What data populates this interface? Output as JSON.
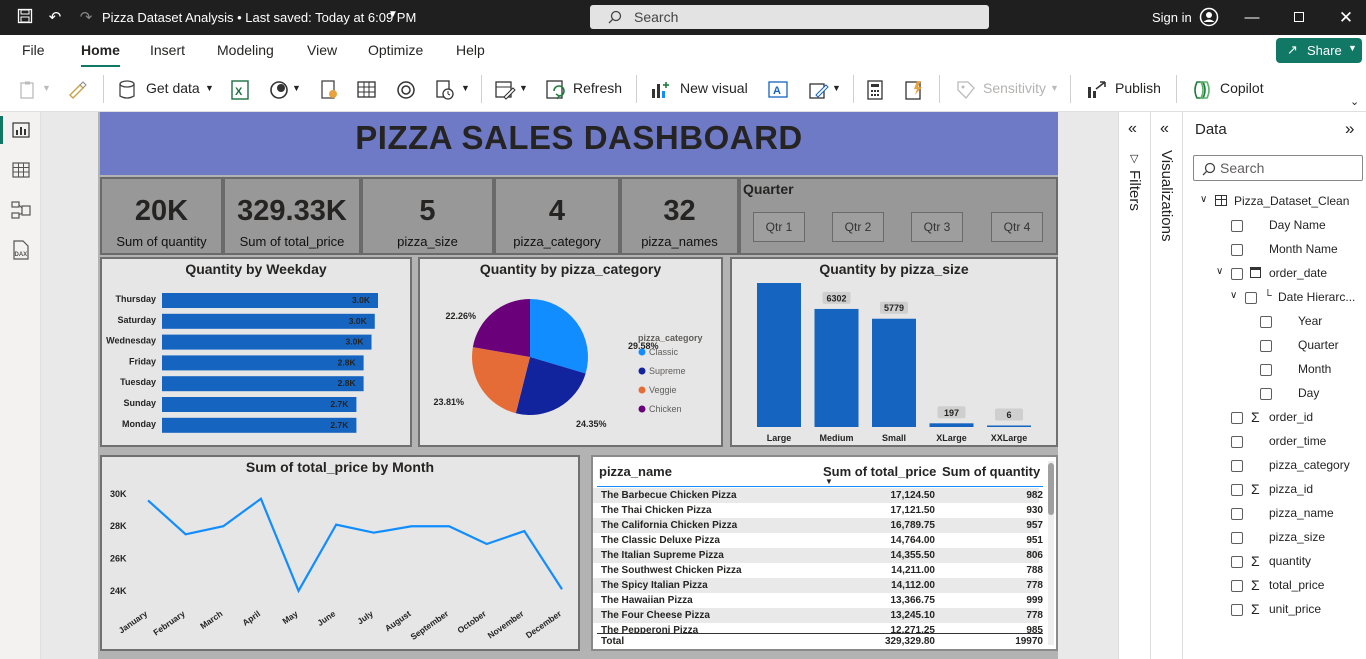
{
  "titlebar": {
    "doc_title": "Pizza Dataset Analysis • Last saved: Today at 6:09 PM",
    "search_label": "Search",
    "signin": "Sign in"
  },
  "menubar": {
    "items": [
      "File",
      "Home",
      "Insert",
      "Modeling",
      "View",
      "Optimize",
      "Help"
    ],
    "active": "Home",
    "share": "Share"
  },
  "ribbon": {
    "get_data": "Get data",
    "refresh": "Refresh",
    "new_visual": "New visual",
    "sensitivity": "Sensitivity",
    "publish": "Publish",
    "copilot": "Copilot"
  },
  "dashboard": {
    "title": "PIZZA SALES DASHBOARD",
    "kpis": [
      {
        "value": "20K",
        "label": "Sum of quantity"
      },
      {
        "value": "329.33K",
        "label": "Sum of total_price"
      },
      {
        "value": "5",
        "label": "pizza_size"
      },
      {
        "value": "4",
        "label": "pizza_category"
      },
      {
        "value": "32",
        "label": "pizza_names"
      }
    ],
    "slicer": {
      "title": "Quarter",
      "items": [
        "Qtr 1",
        "Qtr 2",
        "Qtr 3",
        "Qtr 4"
      ]
    }
  },
  "chart_data": [
    {
      "type": "bar",
      "orientation": "horizontal",
      "title": "Quantity by Weekday",
      "categories": [
        "Thursday",
        "Saturday",
        "Wednesday",
        "Friday",
        "Tuesday",
        "Sunday",
        "Monday"
      ],
      "values": [
        3.0,
        3.0,
        3.0,
        2.8,
        2.8,
        2.7,
        2.7
      ],
      "labels": [
        "3.0K",
        "3.0K",
        "3.0K",
        "2.8K",
        "2.8K",
        "2.7K",
        "2.7K"
      ],
      "color": "#1565c0"
    },
    {
      "type": "pie",
      "title": "Quantity by pizza_category",
      "legend_title": "pizza_category",
      "slices": [
        {
          "name": "Classic",
          "value": 29.58,
          "label": "29.58%",
          "color": "#118dff"
        },
        {
          "name": "Supreme",
          "value": 24.35,
          "label": "24.35%",
          "color": "#12239e"
        },
        {
          "name": "Veggie",
          "value": 23.81,
          "label": "23.81%",
          "color": "#e66c37"
        },
        {
          "name": "Chicken",
          "value": 22.26,
          "label": "22.26%",
          "color": "#6b007b"
        }
      ],
      "legend_placement": "right"
    },
    {
      "type": "bar",
      "title": "Quantity by pizza_size",
      "categories": [
        "Large",
        "Medium",
        "Small",
        "XLarge",
        "XXLarge"
      ],
      "values": [
        7686,
        6302,
        5779,
        197,
        6
      ],
      "color": "#1565c0"
    },
    {
      "type": "line",
      "title": "Sum of total_price by Month",
      "categories": [
        "January",
        "February",
        "March",
        "April",
        "May",
        "June",
        "July",
        "August",
        "September",
        "October",
        "November",
        "December"
      ],
      "values": [
        29600,
        27500,
        28000,
        29700,
        24000,
        28100,
        27600,
        28000,
        28000,
        26900,
        27700,
        24100
      ],
      "yticks": [
        "30K",
        "28K",
        "26K",
        "24K"
      ],
      "ylim": [
        23000,
        30800
      ],
      "color": "#118dff"
    },
    {
      "type": "table",
      "columns": [
        "pizza_name",
        "Sum of total_price",
        "Sum of quantity"
      ],
      "rows": [
        [
          "The Barbecue Chicken Pizza",
          "17,124.50",
          "982"
        ],
        [
          "The Thai Chicken Pizza",
          "17,121.50",
          "930"
        ],
        [
          "The California Chicken Pizza",
          "16,789.75",
          "957"
        ],
        [
          "The Classic Deluxe Pizza",
          "14,764.00",
          "951"
        ],
        [
          "The Italian Supreme Pizza",
          "14,355.50",
          "806"
        ],
        [
          "The Southwest Chicken Pizza",
          "14,211.00",
          "788"
        ],
        [
          "The Spicy Italian Pizza",
          "14,112.00",
          "778"
        ],
        [
          "The Hawaiian Pizza",
          "13,366.75",
          "999"
        ],
        [
          "The Four Cheese Pizza",
          "13,245.10",
          "778"
        ],
        [
          "The Pepperoni Pizza",
          "12,271.25",
          "985"
        ]
      ],
      "total": [
        "Total",
        "329,329.80",
        "19970"
      ]
    }
  ],
  "panes": {
    "filters": "Filters",
    "visualizations": "Visualizations",
    "data": "Data",
    "data_search": "Search",
    "fields": [
      {
        "label": "Pizza_Dataset_Clean",
        "type": "table",
        "indent": 0
      },
      {
        "label": "Day Name",
        "type": "field",
        "indent": 1
      },
      {
        "label": "Month Name",
        "type": "field",
        "indent": 1
      },
      {
        "label": "order_date",
        "type": "date",
        "indent": 1
      },
      {
        "label": "Date Hierarc...",
        "type": "hier",
        "indent": 2
      },
      {
        "label": "Year",
        "type": "field",
        "indent": 3
      },
      {
        "label": "Quarter",
        "type": "field",
        "indent": 3
      },
      {
        "label": "Month",
        "type": "field",
        "indent": 3
      },
      {
        "label": "Day",
        "type": "field",
        "indent": 3
      },
      {
        "label": "order_id",
        "type": "sum",
        "indent": 1
      },
      {
        "label": "order_time",
        "type": "field",
        "indent": 1
      },
      {
        "label": "pizza_category",
        "type": "field",
        "indent": 1
      },
      {
        "label": "pizza_id",
        "type": "sum",
        "indent": 1
      },
      {
        "label": "pizza_name",
        "type": "field",
        "indent": 1
      },
      {
        "label": "pizza_size",
        "type": "field",
        "indent": 1
      },
      {
        "label": "quantity",
        "type": "sum",
        "indent": 1
      },
      {
        "label": "total_price",
        "type": "sum",
        "indent": 1
      },
      {
        "label": "unit_price",
        "type": "sum",
        "indent": 1
      }
    ]
  }
}
